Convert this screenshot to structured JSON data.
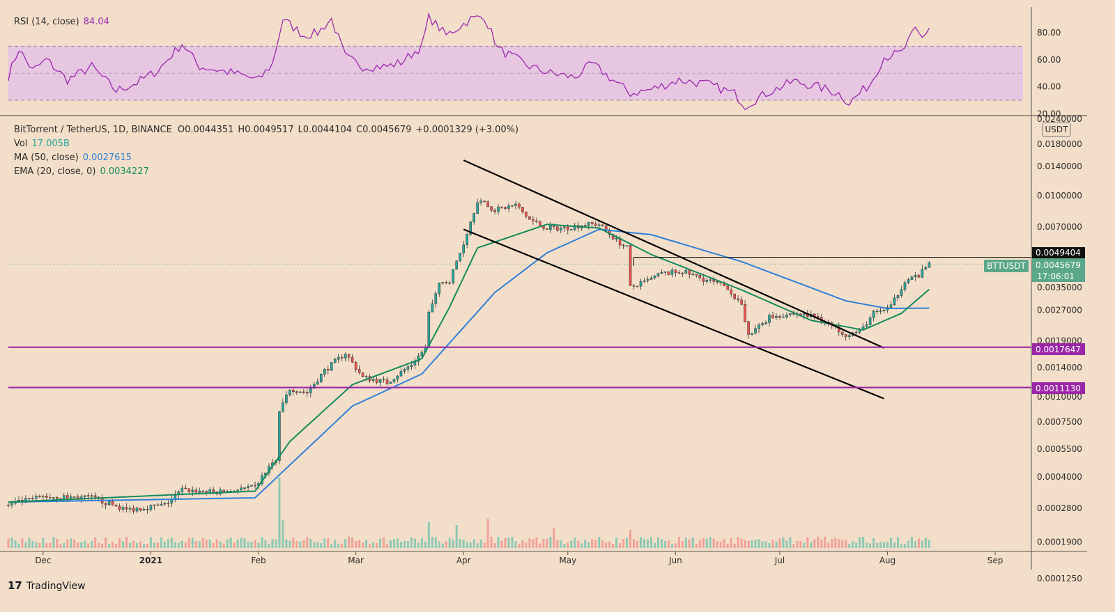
{
  "brand": "TradingView",
  "colors": {
    "background": "#f3dfc9",
    "candle_up": "#26a69a",
    "candle_down": "#ef5350",
    "rsi_line": "#9c27b0",
    "rsi_band": "#e1bee7",
    "ma50": "#2e7fd8",
    "ema20": "#138a5c",
    "support": "#9b27a8",
    "channel": "#000000"
  },
  "chart_data": {
    "type": "candlestick",
    "title": "BitTorrent / TetherUS, 1D, BINANCE",
    "ohlc_label": {
      "o": "O0.0044351",
      "h": "H0.0049517",
      "l": "L0.0044104",
      "c": "C0.0045679",
      "change": "+0.0001329 (+3.00%)"
    },
    "legend": {
      "vol_label": "Vol",
      "vol_value": "17.005B",
      "ma_label": "MA (50, close)",
      "ma_value": "0.0027615",
      "ema_label": "EMA (20, close, 0)",
      "ema_value": "0.0034227"
    },
    "price_scale": "log",
    "currency": "USDT",
    "price_ticks": [
      "0.0240000",
      "0.0180000",
      "0.0140000",
      "0.0100000",
      "0.0070000",
      "0.0049404",
      "0.0045679",
      "0.0035000",
      "0.0027000",
      "0.0019000",
      "0.0017647",
      "0.0014000",
      "0.0011130",
      "0.0010000",
      "0.0007500",
      "0.0005500",
      "0.0004000",
      "0.0002800",
      "0.0001900",
      "0.0001250"
    ],
    "price_tick_values": [
      0.024,
      0.018,
      0.014,
      0.01,
      0.007,
      0.0049404,
      0.0045679,
      0.0035,
      0.0027,
      0.0019,
      0.0017647,
      0.0014,
      0.001113,
      0.001,
      0.00075,
      0.00055,
      0.0004,
      0.00028,
      0.00019,
      0.000125
    ],
    "x_labels": [
      "Dec",
      "2021",
      "Feb",
      "Mar",
      "Apr",
      "May",
      "Jun",
      "Jul",
      "Aug",
      "Sep"
    ],
    "x_label_dates": [
      "2020-12-01",
      "2021-01-01",
      "2021-02-01",
      "2021-03-01",
      "2021-04-01",
      "2021-05-01",
      "2021-06-01",
      "2021-07-01",
      "2021-08-01",
      "2021-09-01"
    ],
    "date_range": [
      "2020-11-21",
      "2021-09-09"
    ],
    "last_date": "2021-08-13",
    "last_price_label": {
      "symbol": "BTTUSDT",
      "value": "0.0045679",
      "countdown": "17:06:01"
    },
    "resistance": {
      "value": 0.0049404,
      "label": "0.0049404",
      "from_date": "2021-05-20"
    },
    "supports": [
      {
        "value": 0.0017647,
        "label": "0.0017647"
      },
      {
        "value": 0.001113,
        "label": "0.0011130"
      }
    ],
    "channel_lines": [
      {
        "from": [
          "2021-04-01",
          0.015
        ],
        "to": [
          "2021-07-31",
          0.00175
        ]
      },
      {
        "from": [
          "2021-04-01",
          0.0068
        ],
        "to": [
          "2021-07-31",
          0.00098
        ]
      }
    ],
    "price_anchors": [
      [
        "2020-11-21",
        0.00029
      ],
      [
        "2020-12-01",
        0.00032
      ],
      [
        "2020-12-15",
        0.000315
      ],
      [
        "2020-12-25",
        0.000275
      ],
      [
        "2021-01-05",
        0.00029
      ],
      [
        "2021-01-10",
        0.000345
      ],
      [
        "2021-01-20",
        0.000335
      ],
      [
        "2021-01-31",
        0.000355
      ],
      [
        "2021-02-04",
        0.00045
      ],
      [
        "2021-02-06",
        0.00048
      ],
      [
        "2021-02-07",
        0.00085
      ],
      [
        "2021-02-10",
        0.0011
      ],
      [
        "2021-02-15",
        0.00105
      ],
      [
        "2021-02-20",
        0.00135
      ],
      [
        "2021-02-26",
        0.00165
      ],
      [
        "2021-03-03",
        0.00125
      ],
      [
        "2021-03-10",
        0.00118
      ],
      [
        "2021-03-17",
        0.00145
      ],
      [
        "2021-03-21",
        0.00175
      ],
      [
        "2021-03-22",
        0.0026
      ],
      [
        "2021-03-25",
        0.0036
      ],
      [
        "2021-03-28",
        0.0038
      ],
      [
        "2021-04-01",
        0.0058
      ],
      [
        "2021-04-05",
        0.0095
      ],
      [
        "2021-04-10",
        0.0085
      ],
      [
        "2021-04-16",
        0.009
      ],
      [
        "2021-04-20",
        0.0076
      ],
      [
        "2021-04-25",
        0.0069
      ],
      [
        "2021-04-30",
        0.0069
      ],
      [
        "2021-05-06",
        0.0072
      ],
      [
        "2021-05-10",
        0.0072
      ],
      [
        "2021-05-15",
        0.006
      ],
      [
        "2021-05-18",
        0.0055
      ],
      [
        "2021-05-19",
        0.0035
      ],
      [
        "2021-05-23",
        0.0037
      ],
      [
        "2021-05-28",
        0.0041
      ],
      [
        "2021-06-03",
        0.0042
      ],
      [
        "2021-06-10",
        0.0038
      ],
      [
        "2021-06-16",
        0.0035
      ],
      [
        "2021-06-20",
        0.0028
      ],
      [
        "2021-06-22",
        0.002
      ],
      [
        "2021-06-28",
        0.0025
      ],
      [
        "2021-07-05",
        0.0026
      ],
      [
        "2021-07-12",
        0.0025
      ],
      [
        "2021-07-20",
        0.00205
      ],
      [
        "2021-07-24",
        0.0021
      ],
      [
        "2021-07-28",
        0.0026
      ],
      [
        "2021-08-02",
        0.0028
      ],
      [
        "2021-08-06",
        0.0038
      ],
      [
        "2021-08-10",
        0.004
      ],
      [
        "2021-08-13",
        0.0045679
      ]
    ],
    "ma50_anchors": [
      [
        "2020-11-21",
        0.0003
      ],
      [
        "2021-01-31",
        0.000315
      ],
      [
        "2021-02-28",
        0.0009
      ],
      [
        "2021-03-20",
        0.0013
      ],
      [
        "2021-04-10",
        0.0033
      ],
      [
        "2021-04-25",
        0.0052
      ],
      [
        "2021-05-10",
        0.0068
      ],
      [
        "2021-05-25",
        0.0064
      ],
      [
        "2021-06-20",
        0.0047
      ],
      [
        "2021-07-20",
        0.003
      ],
      [
        "2021-08-01",
        0.00275
      ],
      [
        "2021-08-13",
        0.0027615
      ]
    ],
    "ema20_anchors": [
      [
        "2020-11-21",
        0.0003
      ],
      [
        "2021-01-31",
        0.00034
      ],
      [
        "2021-02-10",
        0.0006
      ],
      [
        "2021-02-28",
        0.00115
      ],
      [
        "2021-03-20",
        0.00155
      ],
      [
        "2021-03-28",
        0.0028
      ],
      [
        "2021-04-05",
        0.0055
      ],
      [
        "2021-04-25",
        0.0072
      ],
      [
        "2021-05-10",
        0.0069
      ],
      [
        "2021-05-25",
        0.0051
      ],
      [
        "2021-06-20",
        0.0034
      ],
      [
        "2021-07-10",
        0.0024
      ],
      [
        "2021-07-25",
        0.00215
      ],
      [
        "2021-08-05",
        0.0026
      ],
      [
        "2021-08-13",
        0.0034227
      ]
    ],
    "volume_spikes": [
      [
        "2021-02-07",
        4.6
      ],
      [
        "2021-02-08",
        1.8
      ],
      [
        "2021-03-22",
        1.7
      ],
      [
        "2021-03-30",
        1.5
      ],
      [
        "2021-04-08",
        1.9
      ],
      [
        "2021-04-27",
        1.3
      ],
      [
        "2021-05-19",
        1.2
      ],
      [
        "2021-06-21",
        0.5
      ]
    ],
    "rsi": {
      "label": "RSI (14, close)",
      "value": "84.04",
      "ticks": [
        "80.00",
        "60.00",
        "40.00",
        "20.00"
      ],
      "tick_values": [
        80,
        60,
        40,
        20
      ],
      "band": [
        30,
        70
      ],
      "range": [
        20,
        95
      ],
      "anchors": [
        [
          "2020-11-21",
          48
        ],
        [
          "2020-11-24",
          68
        ],
        [
          "2020-11-28",
          52
        ],
        [
          "2020-12-02",
          60
        ],
        [
          "2020-12-08",
          45
        ],
        [
          "2020-12-15",
          55
        ],
        [
          "2020-12-22",
          37
        ],
        [
          "2020-12-28",
          43
        ],
        [
          "2021-01-03",
          52
        ],
        [
          "2021-01-10",
          72
        ],
        [
          "2021-01-15",
          55
        ],
        [
          "2021-01-25",
          50
        ],
        [
          "2021-02-01",
          45
        ],
        [
          "2021-02-05",
          57
        ],
        [
          "2021-02-08",
          90
        ],
        [
          "2021-02-14",
          78
        ],
        [
          "2021-02-18",
          80
        ],
        [
          "2021-02-22",
          90
        ],
        [
          "2021-02-26",
          62
        ],
        [
          "2021-03-03",
          55
        ],
        [
          "2021-03-10",
          55
        ],
        [
          "2021-03-14",
          58
        ],
        [
          "2021-03-20",
          70
        ],
        [
          "2021-03-22",
          92
        ],
        [
          "2021-03-27",
          78
        ],
        [
          "2021-04-03",
          90
        ],
        [
          "2021-04-07",
          92
        ],
        [
          "2021-04-11",
          68
        ],
        [
          "2021-04-20",
          55
        ],
        [
          "2021-04-26",
          50
        ],
        [
          "2021-05-03",
          47
        ],
        [
          "2021-05-08",
          57
        ],
        [
          "2021-05-14",
          45
        ],
        [
          "2021-05-19",
          35
        ],
        [
          "2021-05-25",
          38
        ],
        [
          "2021-06-02",
          45
        ],
        [
          "2021-06-10",
          42
        ],
        [
          "2021-06-18",
          35
        ],
        [
          "2021-06-21",
          26
        ],
        [
          "2021-06-27",
          35
        ],
        [
          "2021-07-05",
          44
        ],
        [
          "2021-07-12",
          40
        ],
        [
          "2021-07-18",
          35
        ],
        [
          "2021-07-21",
          28
        ],
        [
          "2021-07-27",
          42
        ],
        [
          "2021-07-31",
          62
        ],
        [
          "2021-08-05",
          65
        ],
        [
          "2021-08-09",
          82
        ],
        [
          "2021-08-11",
          76
        ],
        [
          "2021-08-13",
          84
        ]
      ]
    }
  }
}
